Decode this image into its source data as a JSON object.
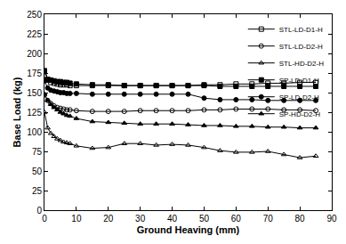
{
  "chart_data": {
    "type": "line",
    "x_label": "Ground Heaving (mm)",
    "y_label": "Base Load (kg)",
    "x": [
      0,
      1,
      2,
      3,
      4,
      5,
      6,
      7,
      8,
      10,
      15,
      20,
      25,
      30,
      35,
      40,
      45,
      50,
      55,
      60,
      65,
      70,
      75,
      80,
      85
    ],
    "xlim": [
      0,
      90
    ],
    "xticks": [
      0,
      10,
      20,
      30,
      40,
      50,
      60,
      70,
      80,
      90
    ],
    "ylim": [
      0,
      250
    ],
    "yticks": [
      0,
      25,
      50,
      75,
      100,
      125,
      150,
      175,
      200,
      225,
      250
    ],
    "grid": false,
    "legend": "top-right",
    "series": [
      {
        "name": "STL-LD-D1-H",
        "color": "#000000",
        "marker": "square-open",
        "values": [
          170,
          166,
          163,
          162,
          161,
          160,
          160,
          160,
          159,
          159,
          159,
          159,
          159,
          159,
          159,
          159,
          159,
          160,
          160,
          161,
          161,
          162,
          162,
          163,
          163
        ]
      },
      {
        "name": "STL-LD-D2-H",
        "color": "#000000",
        "marker": "circle-open",
        "values": [
          147,
          140,
          136,
          133,
          131,
          130,
          129,
          128,
          128,
          127,
          126,
          126,
          126,
          127,
          127,
          127,
          127,
          128,
          128,
          129,
          129,
          129,
          128,
          128,
          127
        ]
      },
      {
        "name": "STL-HD-D2-H",
        "color": "#000000",
        "marker": "triangle-up-open",
        "values": [
          125,
          105,
          98,
          94,
          91,
          89,
          87,
          86,
          85,
          82,
          79,
          80,
          85,
          85,
          83,
          84,
          83,
          80,
          76,
          74,
          74,
          75,
          71,
          67,
          69
        ]
      },
      {
        "name": "SP-LD-D1-H",
        "color": "#000000",
        "marker": "square",
        "values": [
          178,
          167,
          166,
          165,
          164,
          164,
          163,
          163,
          162,
          161,
          160,
          160,
          159,
          159,
          159,
          159,
          159,
          159,
          158,
          158,
          158,
          158,
          158,
          158,
          158
        ]
      },
      {
        "name": "SP-LD-D2-H",
        "color": "#000000",
        "marker": "circle",
        "values": [
          165,
          156,
          153,
          152,
          151,
          150,
          150,
          149,
          149,
          149,
          148,
          148,
          148,
          148,
          148,
          148,
          148,
          143,
          141,
          141,
          141,
          140,
          140,
          140,
          140
        ]
      },
      {
        "name": "SP-HD-D2-H",
        "color": "#000000",
        "marker": "triangle-up",
        "values": [
          148,
          140,
          135,
          131,
          128,
          125,
          123,
          121,
          120,
          117,
          113,
          112,
          111,
          110,
          110,
          110,
          109,
          108,
          108,
          107,
          107,
          106,
          106,
          105,
          105
        ]
      }
    ]
  }
}
